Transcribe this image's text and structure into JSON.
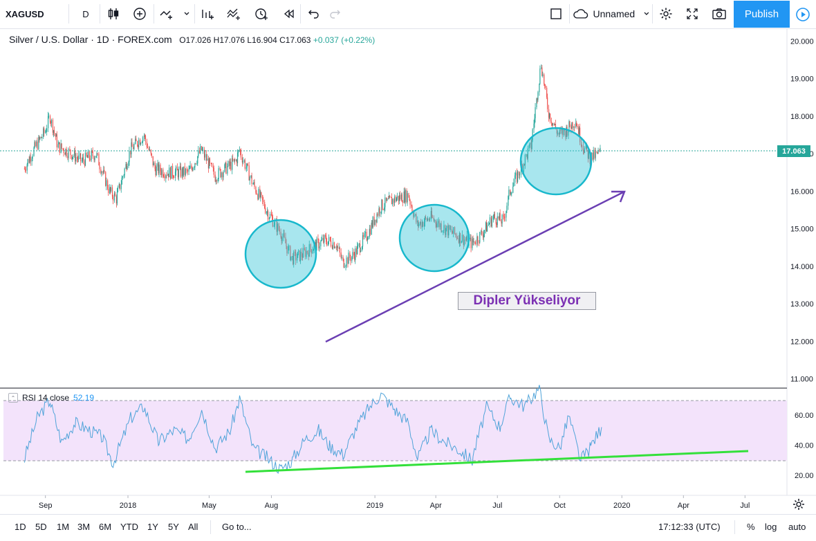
{
  "toolbar": {
    "symbol": "XAGUSD",
    "interval": "D",
    "layout_name": "Unnamed",
    "publish_label": "Publish"
  },
  "legend": {
    "title": "Silver / U.S. Dollar · 1D · FOREX.com",
    "open": "O17.026",
    "high": "H17.076",
    "low": "L16.904",
    "close": "C17.063",
    "change": "+0.037 (+0.22%)"
  },
  "current_price": "17.063",
  "annotation_text": "Dipler Yükseliyor",
  "rsi_legend": {
    "label": "RSI 14 close",
    "value": "52.19"
  },
  "bottom": {
    "ranges": [
      "1D",
      "5D",
      "1M",
      "3M",
      "6M",
      "YTD",
      "1Y",
      "5Y",
      "All"
    ],
    "goto_label": "Go to...",
    "clock": "17:12:33 (UTC)",
    "percent_label": "%",
    "log_label": "log",
    "auto_label": "auto"
  },
  "colors": {
    "up": "#26a69a",
    "down": "#ef5350",
    "accent": "#2196f3",
    "rsi_line": "#4fa3d9",
    "rsi_band": "#f3e3fb",
    "circle": "#2fc4d6",
    "trend_arrow": "#6b3fb3",
    "rsi_trend": "#33e03a"
  },
  "chart_data": {
    "type": "candlestick",
    "title": "Silver / U.S. Dollar · 1D · FOREX.com",
    "price_axis": {
      "ticks": [
        "20.000",
        "19.000",
        "18.000",
        "17.000",
        "16.000",
        "15.000",
        "14.000",
        "13.000",
        "12.000",
        "11.000"
      ],
      "ylim": [
        10.8,
        20.4
      ]
    },
    "rsi_axis": {
      "ticks": [
        "60.00",
        "40.00",
        "20.00"
      ],
      "upper_band": 70,
      "lower_band": 30
    },
    "time_axis": {
      "ticks": [
        "Sep",
        "2018",
        "May",
        "Aug",
        "2019",
        "Apr",
        "Jul",
        "Oct",
        "2020",
        "Apr",
        "Jul"
      ]
    },
    "price_series": [
      {
        "date": "2017-08-01",
        "value": 16.6
      },
      {
        "date": "2017-08-15",
        "value": 17.1
      },
      {
        "date": "2017-09-01",
        "value": 17.6
      },
      {
        "date": "2017-09-08",
        "value": 18.0
      },
      {
        "date": "2017-09-20",
        "value": 17.2
      },
      {
        "date": "2017-10-10",
        "value": 17.0
      },
      {
        "date": "2017-10-25",
        "value": 16.8
      },
      {
        "date": "2017-11-15",
        "value": 17.0
      },
      {
        "date": "2017-12-05",
        "value": 16.0
      },
      {
        "date": "2017-12-15",
        "value": 15.8
      },
      {
        "date": "2018-01-05",
        "value": 17.1
      },
      {
        "date": "2018-01-25",
        "value": 17.5
      },
      {
        "date": "2018-02-10",
        "value": 16.6
      },
      {
        "date": "2018-03-01",
        "value": 16.5
      },
      {
        "date": "2018-04-01",
        "value": 16.5
      },
      {
        "date": "2018-04-20",
        "value": 17.1
      },
      {
        "date": "2018-05-10",
        "value": 16.4
      },
      {
        "date": "2018-06-10",
        "value": 16.8
      },
      {
        "date": "2018-06-15",
        "value": 17.1
      },
      {
        "date": "2018-07-05",
        "value": 16.2
      },
      {
        "date": "2018-07-25",
        "value": 15.5
      },
      {
        "date": "2018-08-15",
        "value": 14.9
      },
      {
        "date": "2018-09-01",
        "value": 14.2
      },
      {
        "date": "2018-09-15",
        "value": 14.3
      },
      {
        "date": "2018-10-01",
        "value": 14.5
      },
      {
        "date": "2018-10-20",
        "value": 14.7
      },
      {
        "date": "2018-11-05",
        "value": 14.6
      },
      {
        "date": "2018-11-15",
        "value": 14.1
      },
      {
        "date": "2018-12-01",
        "value": 14.3
      },
      {
        "date": "2018-12-20",
        "value": 14.8
      },
      {
        "date": "2019-01-10",
        "value": 15.6
      },
      {
        "date": "2019-02-01",
        "value": 15.8
      },
      {
        "date": "2019-02-20",
        "value": 15.9
      },
      {
        "date": "2019-03-05",
        "value": 15.1
      },
      {
        "date": "2019-03-25",
        "value": 15.3
      },
      {
        "date": "2019-04-15",
        "value": 15.0
      },
      {
        "date": "2019-05-05",
        "value": 14.8
      },
      {
        "date": "2019-05-25",
        "value": 14.6
      },
      {
        "date": "2019-06-10",
        "value": 14.9
      },
      {
        "date": "2019-06-25",
        "value": 15.3
      },
      {
        "date": "2019-07-10",
        "value": 15.2
      },
      {
        "date": "2019-07-20",
        "value": 16.0
      },
      {
        "date": "2019-08-05",
        "value": 16.6
      },
      {
        "date": "2019-08-20",
        "value": 17.2
      },
      {
        "date": "2019-09-04",
        "value": 19.4
      },
      {
        "date": "2019-09-15",
        "value": 18.1
      },
      {
        "date": "2019-09-30",
        "value": 17.5
      },
      {
        "date": "2019-10-10",
        "value": 17.6
      },
      {
        "date": "2019-10-25",
        "value": 17.9
      },
      {
        "date": "2019-11-05",
        "value": 17.2
      },
      {
        "date": "2019-11-15",
        "value": 16.9
      },
      {
        "date": "2019-11-25",
        "value": 16.95
      },
      {
        "date": "2019-12-02",
        "value": 17.06
      }
    ],
    "rsi_series": [
      {
        "date": "2017-08-01",
        "value": 30
      },
      {
        "date": "2017-08-20",
        "value": 58
      },
      {
        "date": "2017-09-08",
        "value": 70
      },
      {
        "date": "2017-09-25",
        "value": 42
      },
      {
        "date": "2017-10-15",
        "value": 55
      },
      {
        "date": "2017-11-05",
        "value": 50
      },
      {
        "date": "2017-11-25",
        "value": 45
      },
      {
        "date": "2017-12-10",
        "value": 28
      },
      {
        "date": "2018-01-05",
        "value": 58
      },
      {
        "date": "2018-01-25",
        "value": 66
      },
      {
        "date": "2018-02-15",
        "value": 42
      },
      {
        "date": "2018-03-10",
        "value": 50
      },
      {
        "date": "2018-04-01",
        "value": 44
      },
      {
        "date": "2018-04-20",
        "value": 64
      },
      {
        "date": "2018-05-10",
        "value": 38
      },
      {
        "date": "2018-06-01",
        "value": 50
      },
      {
        "date": "2018-06-15",
        "value": 71
      },
      {
        "date": "2018-07-05",
        "value": 38
      },
      {
        "date": "2018-07-25",
        "value": 32
      },
      {
        "date": "2018-08-15",
        "value": 24
      },
      {
        "date": "2018-09-01",
        "value": 30
      },
      {
        "date": "2018-09-20",
        "value": 44
      },
      {
        "date": "2018-10-10",
        "value": 50
      },
      {
        "date": "2018-10-25",
        "value": 40
      },
      {
        "date": "2018-11-15",
        "value": 34
      },
      {
        "date": "2018-12-05",
        "value": 52
      },
      {
        "date": "2018-12-25",
        "value": 66
      },
      {
        "date": "2019-01-10",
        "value": 74
      },
      {
        "date": "2019-01-30",
        "value": 64
      },
      {
        "date": "2019-02-20",
        "value": 55
      },
      {
        "date": "2019-03-05",
        "value": 31
      },
      {
        "date": "2019-03-25",
        "value": 50
      },
      {
        "date": "2019-04-15",
        "value": 42
      },
      {
        "date": "2019-05-05",
        "value": 37
      },
      {
        "date": "2019-05-25",
        "value": 30
      },
      {
        "date": "2019-06-15",
        "value": 65
      },
      {
        "date": "2019-07-05",
        "value": 52
      },
      {
        "date": "2019-07-20",
        "value": 72
      },
      {
        "date": "2019-08-10",
        "value": 66
      },
      {
        "date": "2019-09-01",
        "value": 78
      },
      {
        "date": "2019-09-15",
        "value": 44
      },
      {
        "date": "2019-10-01",
        "value": 38
      },
      {
        "date": "2019-10-15",
        "value": 60
      },
      {
        "date": "2019-11-01",
        "value": 30
      },
      {
        "date": "2019-11-15",
        "value": 38
      },
      {
        "date": "2019-12-02",
        "value": 52
      }
    ]
  }
}
